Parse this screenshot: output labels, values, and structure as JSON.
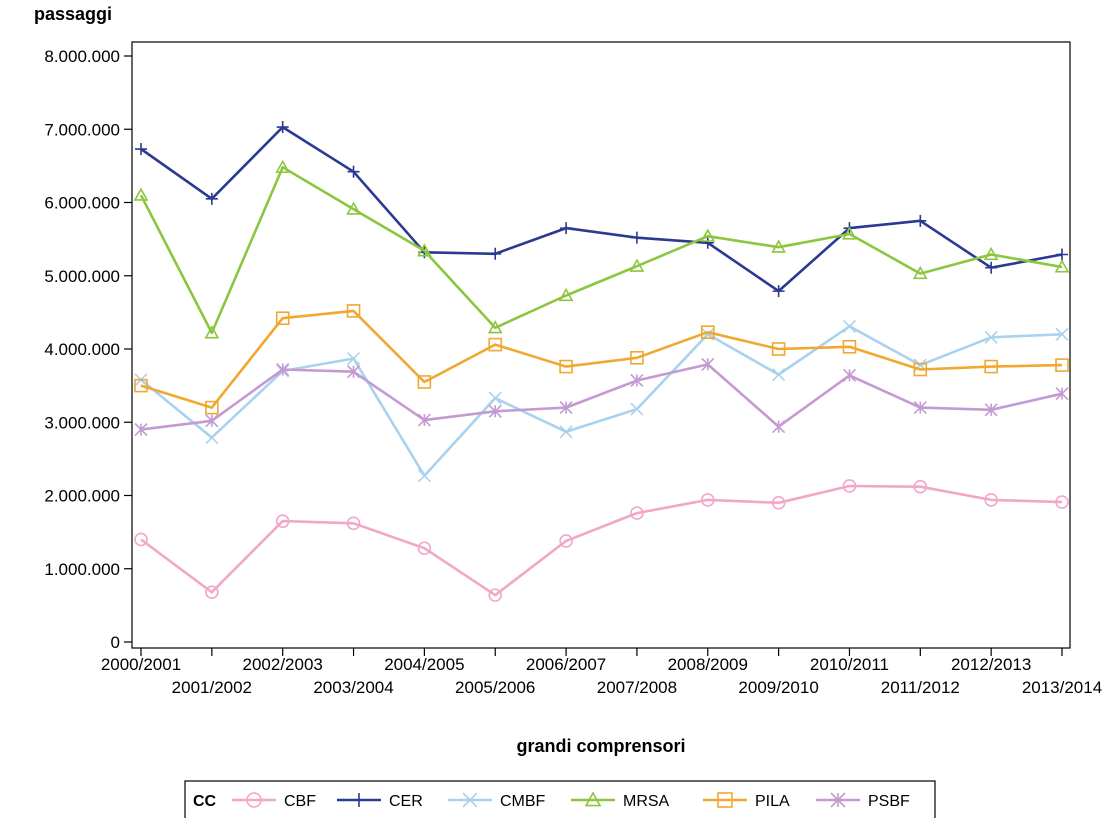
{
  "chart_data": {
    "type": "line",
    "ylabel": "passaggi",
    "xlabel": "grandi comprensori",
    "ylim": [
      0,
      8000000
    ],
    "yticks": [
      0,
      1000000,
      2000000,
      3000000,
      4000000,
      5000000,
      6000000,
      7000000,
      8000000
    ],
    "ytick_labels": [
      "0",
      "1.000.000",
      "2.000.000",
      "3.000.000",
      "4.000.000",
      "5.000.000",
      "6.000.000",
      "7.000.000",
      "8.000.000"
    ],
    "categories": [
      "2000/2001",
      "2001/2002",
      "2002/2003",
      "2003/2004",
      "2004/2005",
      "2005/2006",
      "2006/2007",
      "2007/2008",
      "2008/2009",
      "2009/2010",
      "2010/2011",
      "2011/2012",
      "2012/2013",
      "2013/2014"
    ],
    "grid": false,
    "legend": {
      "title": "CC",
      "position": "bottom-center"
    },
    "series": [
      {
        "name": "CBF",
        "color": "#f2a6c8",
        "marker": "circle",
        "values": [
          1400000,
          680000,
          1650000,
          1620000,
          1280000,
          640000,
          1380000,
          1760000,
          1940000,
          1900000,
          2130000,
          2120000,
          1940000,
          1910000
        ]
      },
      {
        "name": "CER",
        "color": "#2b3a8f",
        "marker": "plus",
        "values": [
          6730000,
          6050000,
          7030000,
          6420000,
          5320000,
          5300000,
          5650000,
          5520000,
          5450000,
          4790000,
          5650000,
          5750000,
          5110000,
          5290000
        ]
      },
      {
        "name": "CMBF",
        "color": "#a9d2ee",
        "marker": "x",
        "values": [
          3580000,
          2790000,
          3700000,
          3870000,
          2270000,
          3330000,
          2870000,
          3180000,
          4200000,
          3650000,
          4310000,
          3780000,
          4160000,
          4200000
        ]
      },
      {
        "name": "MRSA",
        "color": "#8cc63f",
        "marker": "triangle",
        "values": [
          6100000,
          4220000,
          6480000,
          5910000,
          5340000,
          4290000,
          4730000,
          5130000,
          5540000,
          5390000,
          5570000,
          5030000,
          5290000,
          5120000
        ]
      },
      {
        "name": "PILA",
        "color": "#f0a830",
        "marker": "square",
        "values": [
          3500000,
          3200000,
          4420000,
          4520000,
          3550000,
          4060000,
          3760000,
          3880000,
          4230000,
          4000000,
          4030000,
          3720000,
          3760000,
          3780000
        ]
      },
      {
        "name": "PSBF",
        "color": "#c49ad3",
        "marker": "star",
        "values": [
          2900000,
          3020000,
          3720000,
          3690000,
          3030000,
          3150000,
          3200000,
          3570000,
          3790000,
          2940000,
          3640000,
          3200000,
          3170000,
          3390000
        ]
      }
    ]
  }
}
